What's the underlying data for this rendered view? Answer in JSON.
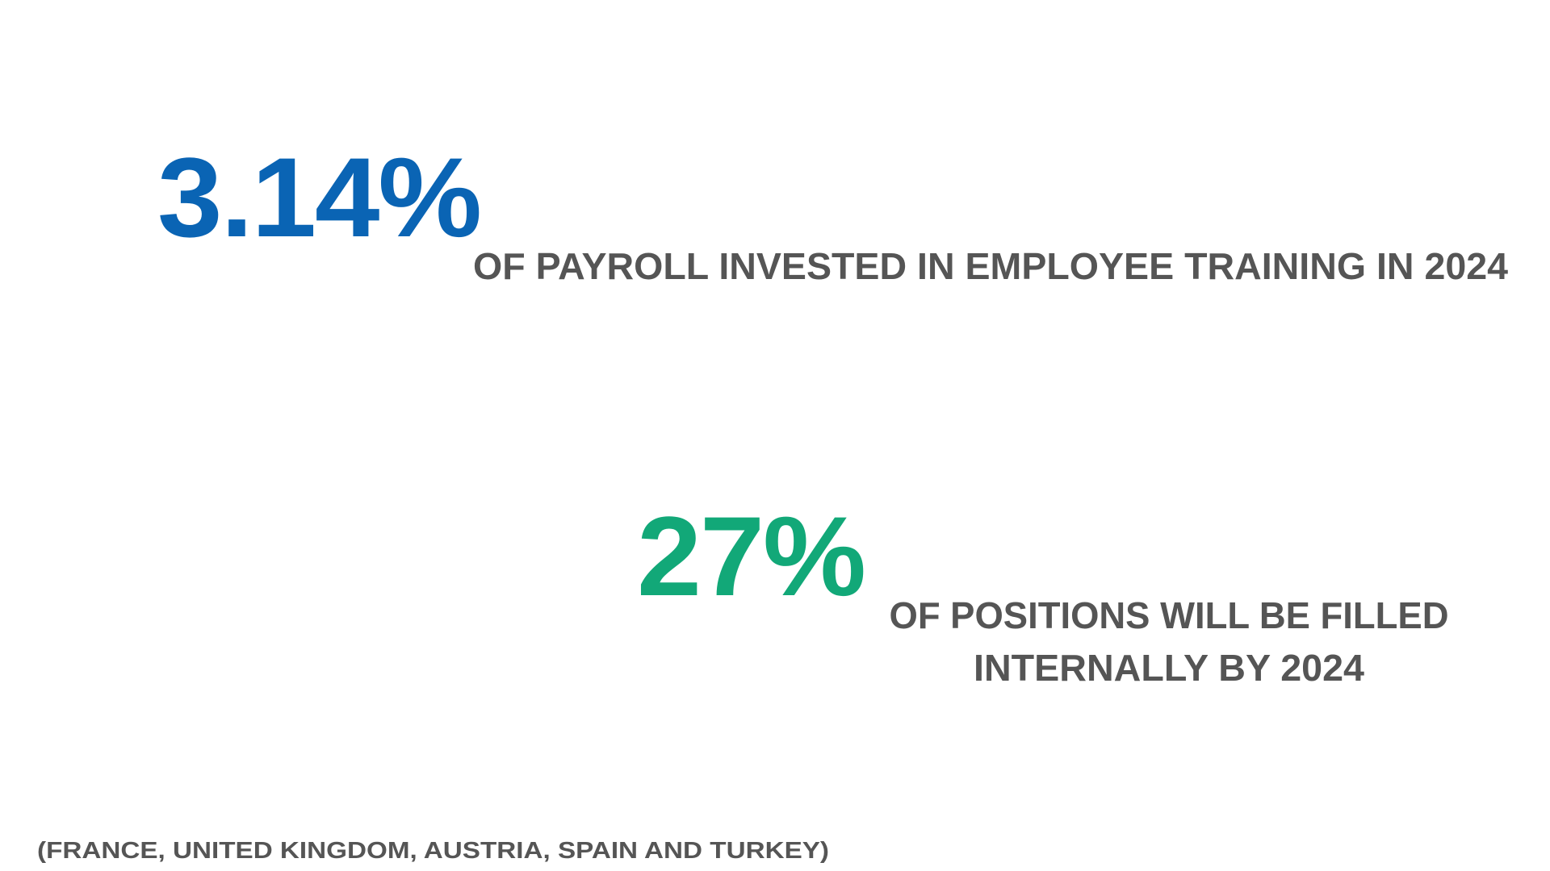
{
  "stats": [
    {
      "value": "3.14%",
      "description_lines": [
        "OF PAYROLL INVESTED IN EMPLOYEE TRAINING IN 2024"
      ]
    },
    {
      "value": "27%",
      "description_lines": [
        "OF POSITIONS WILL BE FILLED",
        "INTERNALLY BY 2024"
      ]
    }
  ],
  "footnote": "(FRANCE, UNITED KINGDOM, AUSTRIA, SPAIN AND TURKEY)"
}
